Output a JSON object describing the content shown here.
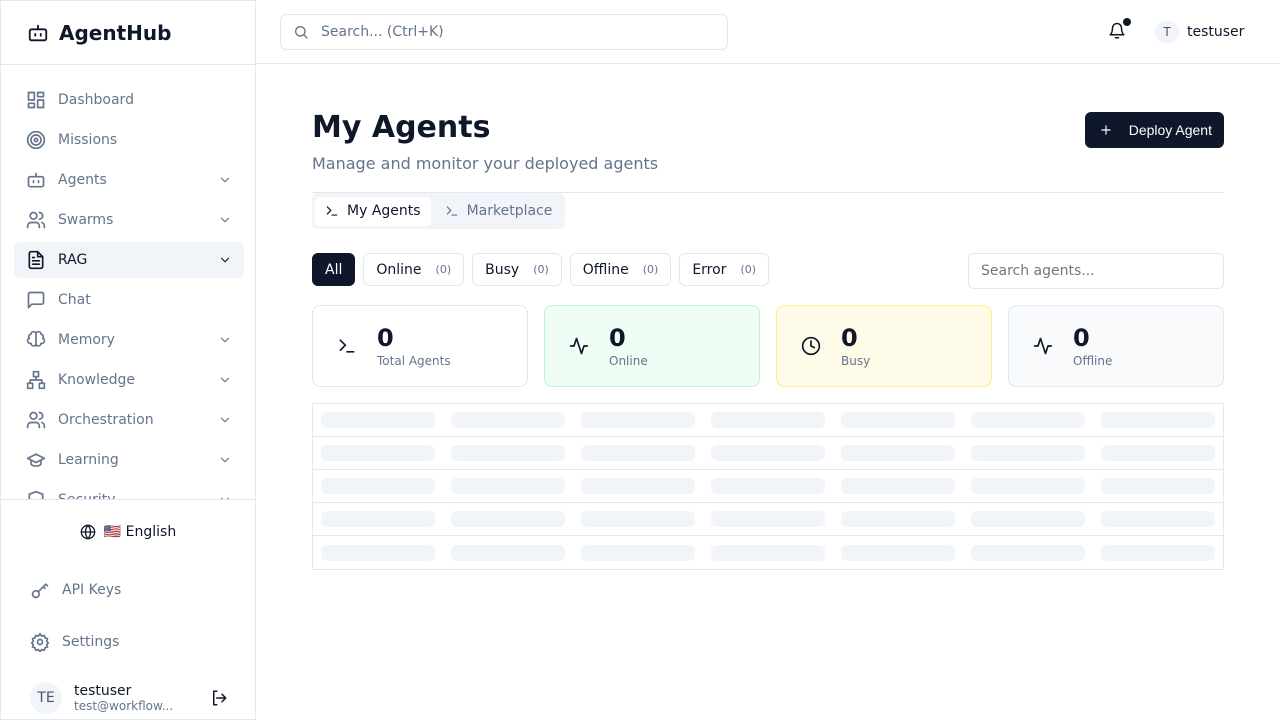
{
  "app": {
    "name": "AgentHub"
  },
  "sidebar": {
    "items": [
      {
        "label": "Dashboard",
        "icon": "dashboard-icon",
        "chev": false
      },
      {
        "label": "Missions",
        "icon": "target-icon",
        "chev": false
      },
      {
        "label": "Agents",
        "icon": "bot-icon",
        "chev": true
      },
      {
        "label": "Swarms",
        "icon": "users-icon",
        "chev": true
      },
      {
        "label": "RAG",
        "icon": "file-text-icon",
        "chev": true,
        "active": true
      },
      {
        "label": "Chat",
        "icon": "chat-icon",
        "chev": false
      },
      {
        "label": "Memory",
        "icon": "brain-icon",
        "chev": true
      },
      {
        "label": "Knowledge",
        "icon": "network-icon",
        "chev": true
      },
      {
        "label": "Orchestration",
        "icon": "users-icon",
        "chev": true
      },
      {
        "label": "Learning",
        "icon": "graduation-cap-icon",
        "chev": true
      },
      {
        "label": "Security",
        "icon": "shield-icon",
        "chev": true
      }
    ],
    "language": "🇺🇸 English",
    "api_keys": "API Keys",
    "settings": "Settings",
    "user": {
      "initials": "TE",
      "name": "testuser",
      "email": "test@workflow..."
    }
  },
  "header": {
    "search_placeholder": "Search... (Ctrl+K)",
    "user_initial": "T",
    "username": "testuser"
  },
  "main": {
    "title": "My Agents",
    "subtitle": "Manage and monitor your deployed agents",
    "deploy_label": "Deploy Agent",
    "tabs": [
      {
        "label": "My Agents"
      },
      {
        "label": "Marketplace"
      }
    ],
    "filters": [
      {
        "label": "All"
      },
      {
        "label": "Online",
        "count": "(0)"
      },
      {
        "label": "Busy",
        "count": "(0)"
      },
      {
        "label": "Offline",
        "count": "(0)"
      },
      {
        "label": "Error",
        "count": "(0)"
      }
    ],
    "search_placeholder": "Search agents...",
    "stats": [
      {
        "value": "0",
        "label": "Total Agents",
        "icon": "terminal-icon",
        "bg": "#ffffff",
        "border": "#e2e8f0"
      },
      {
        "value": "0",
        "label": "Online",
        "icon": "activity-icon",
        "bg": "#f0fdf4",
        "border": "#bbf7d0"
      },
      {
        "value": "0",
        "label": "Busy",
        "icon": "clock-icon",
        "bg": "#fefce8",
        "border": "#fef08a"
      },
      {
        "value": "0",
        "label": "Offline",
        "icon": "activity-icon",
        "bg": "#f8fafc",
        "border": "#e2e8f0"
      }
    ]
  }
}
